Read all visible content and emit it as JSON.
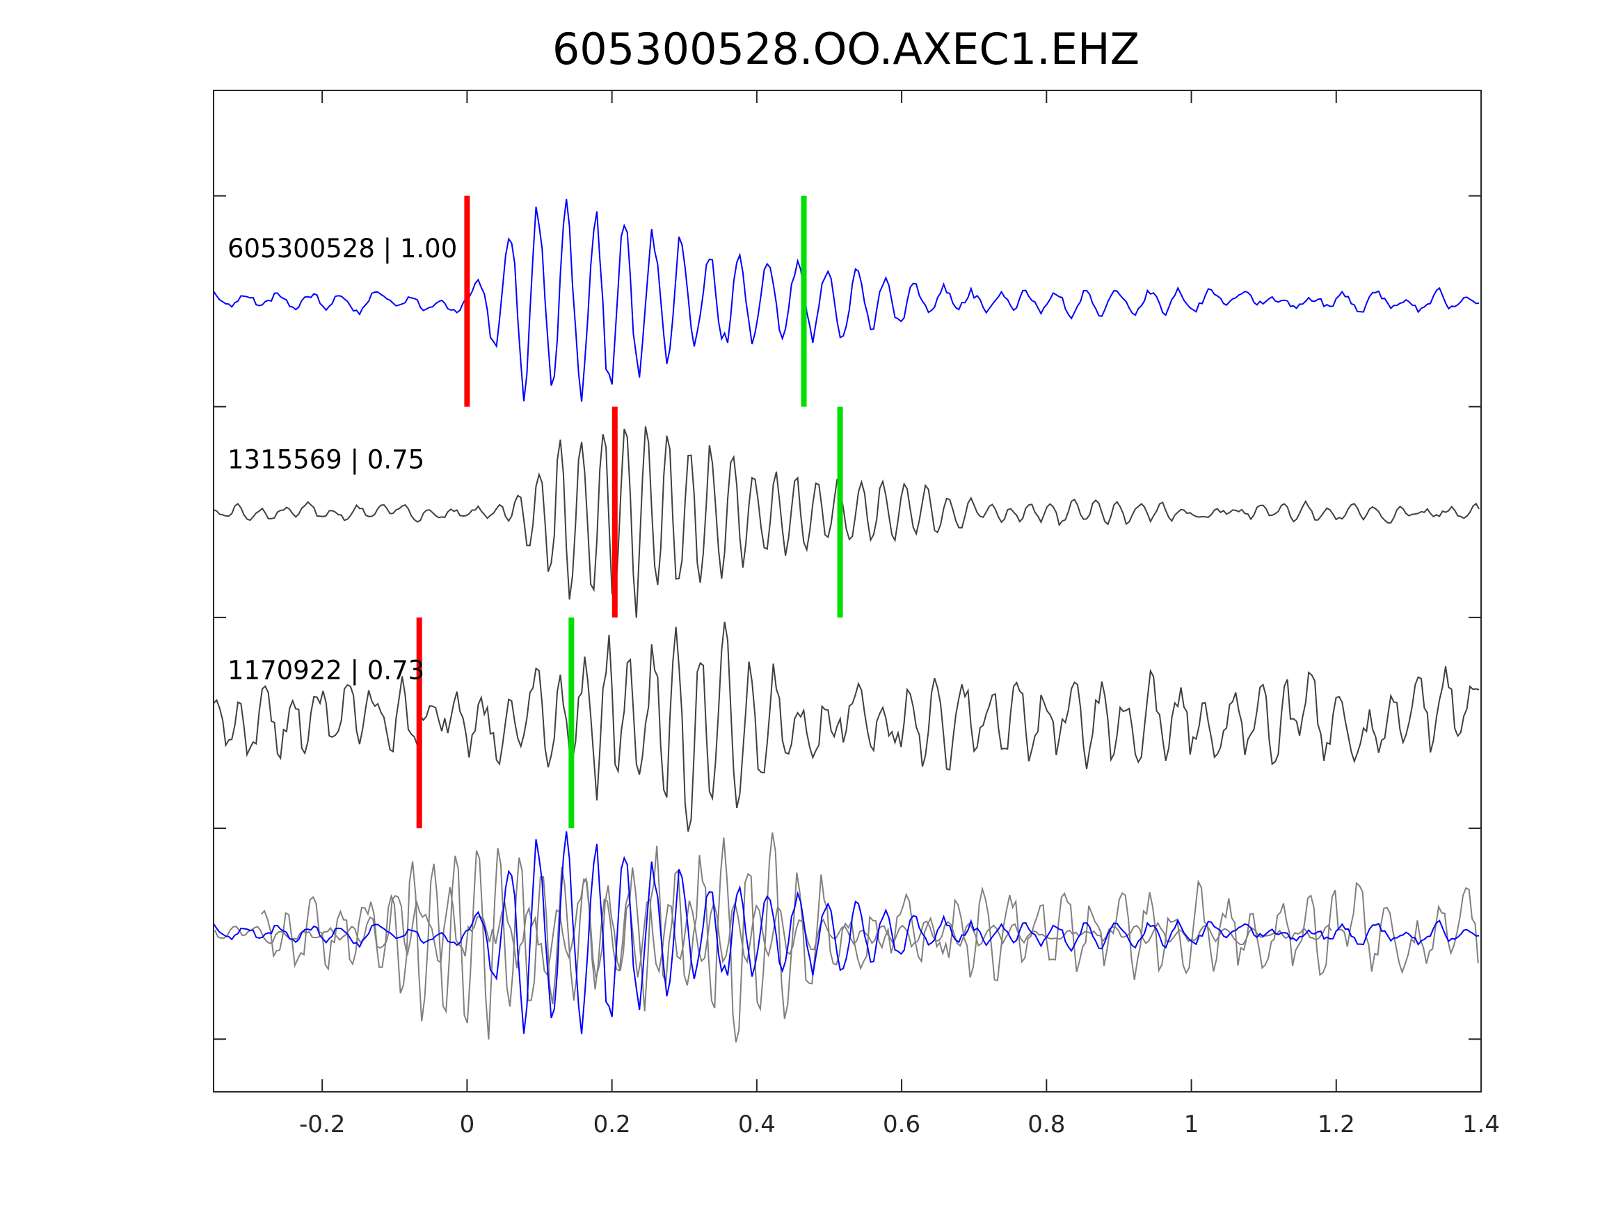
{
  "chart_data": {
    "type": "line",
    "title": "605300528.OO.AXEC1.EHZ",
    "xlabel": "",
    "ylabel": "",
    "xlim": [
      -0.35,
      1.4
    ],
    "ylim": [
      0.5,
      5.25
    ],
    "xticks": [
      -0.2,
      0,
      0.2,
      0.4,
      0.6,
      0.8,
      1,
      1.2,
      1.4
    ],
    "xtick_labels": [
      "-0.2",
      "0",
      "0.2",
      "0.4",
      "0.6",
      "0.8",
      "1",
      "1.2",
      "1.4"
    ],
    "yticks": [
      1,
      2,
      3,
      4,
      5
    ],
    "grid": false,
    "series": [
      {
        "name": "605300528",
        "label": "605300528 | 1.00",
        "score": 1.0,
        "offset": 1.5,
        "color": "#0000ff",
        "p_pick": 0.0,
        "s_pick": 0.465,
        "onset": 0.0,
        "coda_end": 0.6,
        "freq": 25,
        "noise": 0.05,
        "seed": 3
      },
      {
        "name": "1315569",
        "label": "1315569 | 0.75",
        "score": 0.75,
        "offset": 2.5,
        "color": "#404040",
        "p_pick": 0.204,
        "s_pick": 0.515,
        "onset": 0.05,
        "coda_end": 0.62,
        "freq": 34,
        "noise": 0.04,
        "seed": 7
      },
      {
        "name": "1170922",
        "label": "1170922 | 0.73",
        "score": 0.73,
        "offset": 3.5,
        "color": "#404040",
        "p_pick": -0.066,
        "s_pick": 0.144,
        "onset": 0.1,
        "coda_end": 0.32,
        "freq": 30,
        "noise": 0.22,
        "seed": 11
      }
    ],
    "overlay": {
      "offset": 4.5,
      "primary_color": "#0000ff",
      "secondary_color": "#808080"
    },
    "pick_colors": {
      "p": "#ff0000",
      "s": "#00e000"
    }
  }
}
